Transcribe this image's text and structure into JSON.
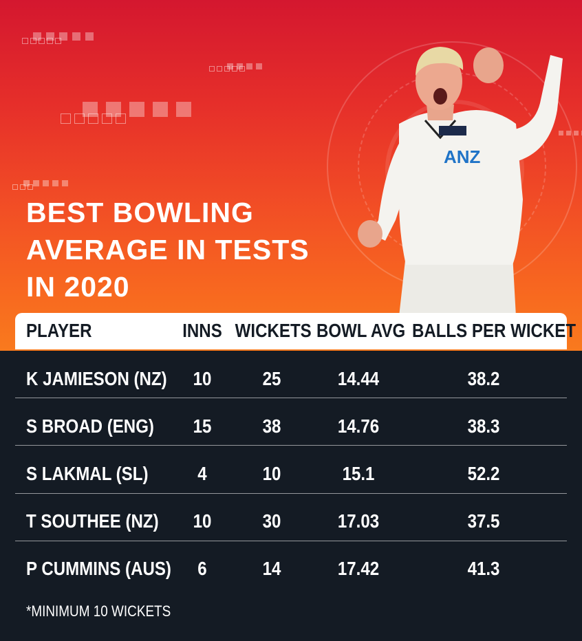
{
  "title_lines": [
    "BEST BOWLING",
    "AVERAGE IN TESTS",
    "IN 2020"
  ],
  "columns": [
    "PLAYER",
    "INNS",
    "WICKETS",
    "BOWL AVG",
    "BALLS PER WICKET"
  ],
  "rows": [
    {
      "player": "K JAMIESON (NZ)",
      "inns": "10",
      "wickets": "25",
      "bowl_avg": "14.44",
      "balls_per_wicket": "38.2"
    },
    {
      "player": "S BROAD (ENG)",
      "inns": "15",
      "wickets": "38",
      "bowl_avg": "14.76",
      "balls_per_wicket": "38.3"
    },
    {
      "player": "S LAKMAL (SL)",
      "inns": "4",
      "wickets": "10",
      "bowl_avg": "15.1",
      "balls_per_wicket": "52.2"
    },
    {
      "player": "T SOUTHEE (NZ)",
      "inns": "10",
      "wickets": "30",
      "bowl_avg": "17.03",
      "balls_per_wicket": "37.5"
    },
    {
      "player": "P CUMMINS (AUS)",
      "inns": "6",
      "wickets": "14",
      "bowl_avg": "17.42",
      "balls_per_wicket": "41.3"
    }
  ],
  "footnote": "*MINIMUM 10 WICKETS",
  "shirt_text": "ANZ",
  "colors": {
    "gradient_top": "#d4172f",
    "gradient_bottom": "#f97a1e",
    "table_background": "#141b24",
    "header_background": "#ffffff"
  }
}
